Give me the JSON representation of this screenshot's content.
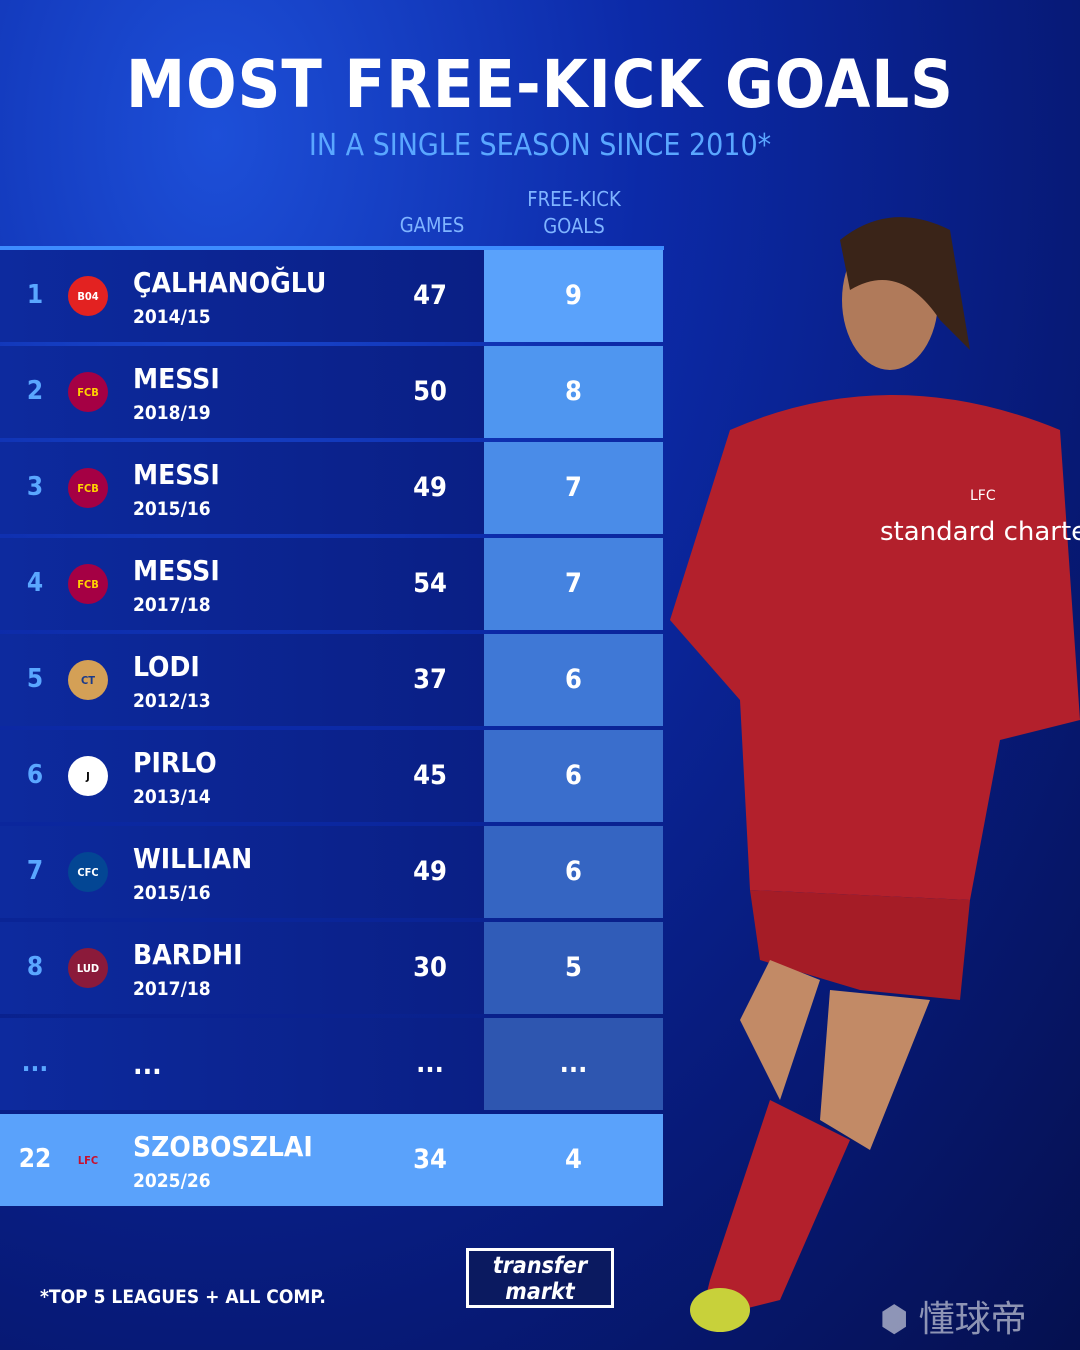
{
  "title": "MOST FREE-KICK GOALS",
  "subtitle": "IN A SINGLE SEASON SINCE 2010*",
  "columns": {
    "games": "GAMES",
    "goals": "FREE-KICK GOALS"
  },
  "footnote": "*TOP 5 LEAGUES + ALL COMP.",
  "brand": {
    "line1": "transfer",
    "line2": "markt"
  },
  "watermark": "懂球帝",
  "player_shirt": {
    "sponsor": "standard chartered",
    "club": "LFC"
  },
  "colors": {
    "accent": "#5aa7ff",
    "highlight": "#5aa2fb",
    "background": "#0a1f85"
  },
  "chart_data": {
    "type": "table",
    "title": "MOST FREE-KICK GOALS",
    "subtitle": "IN A SINGLE SEASON SINCE 2010*",
    "headers": [
      "",
      "",
      "",
      "GAMES",
      "FREE-KICK GOALS"
    ],
    "rows": [
      {
        "rank": "1",
        "club_icon": "bayer-leverkusen-crest",
        "player": "ÇALHANOĞLU",
        "season": "2014/15",
        "games": "47",
        "goals": "9"
      },
      {
        "rank": "2",
        "club_icon": "fc-barcelona-crest",
        "player": "MESSI",
        "season": "2018/19",
        "games": "50",
        "goals": "8"
      },
      {
        "rank": "3",
        "club_icon": "fc-barcelona-crest",
        "player": "MESSI",
        "season": "2015/16",
        "games": "49",
        "goals": "7"
      },
      {
        "rank": "4",
        "club_icon": "fc-barcelona-crest",
        "player": "MESSI",
        "season": "2017/18",
        "games": "54",
        "goals": "7"
      },
      {
        "rank": "5",
        "club_icon": "catania-crest",
        "player": "LODI",
        "season": "2012/13",
        "games": "37",
        "goals": "6"
      },
      {
        "rank": "6",
        "club_icon": "juventus-crest",
        "player": "PIRLO",
        "season": "2013/14",
        "games": "45",
        "goals": "6"
      },
      {
        "rank": "7",
        "club_icon": "chelsea-crest",
        "player": "WILLIAN",
        "season": "2015/16",
        "games": "49",
        "goals": "6"
      },
      {
        "rank": "8",
        "club_icon": "levante-crest",
        "player": "BARDHI",
        "season": "2017/18",
        "games": "30",
        "goals": "5"
      },
      {
        "rank": "...",
        "club_icon": "",
        "player": "...",
        "season": "",
        "games": "...",
        "goals": "..."
      },
      {
        "rank": "22",
        "club_icon": "liverpool-crest",
        "player": "SZOBOSZLAI",
        "season": "2025/26",
        "games": "34",
        "goals": "4",
        "highlighted": true
      }
    ]
  }
}
